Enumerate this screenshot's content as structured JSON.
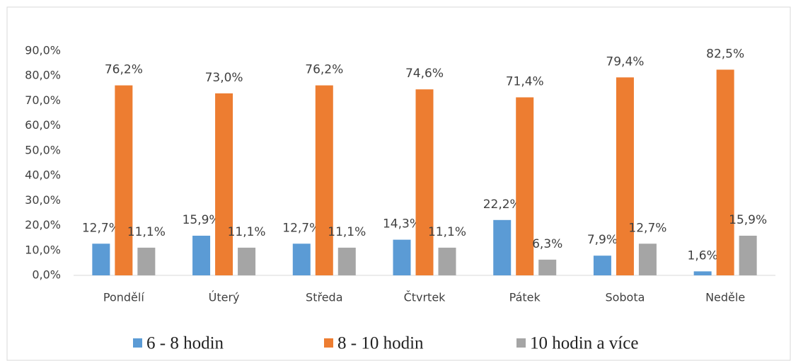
{
  "chart_data": {
    "type": "bar",
    "categories": [
      "Pondělí",
      "Úterý",
      "Středa",
      "Čtvrtek",
      "Pátek",
      "Sobota",
      "Neděle"
    ],
    "series": [
      {
        "name": "6 - 8 hodin",
        "color": "#5b9bd5",
        "values": [
          12.7,
          15.9,
          12.7,
          14.3,
          22.2,
          7.9,
          1.6
        ],
        "value_labels": [
          "12,7%",
          "15,9%",
          "12,7%",
          "14,3%",
          "22,2%",
          "7,9%",
          "1,6%"
        ]
      },
      {
        "name": "8 - 10 hodin",
        "color": "#ed7d31",
        "values": [
          76.2,
          73.0,
          76.2,
          74.6,
          71.4,
          79.4,
          82.5
        ],
        "value_labels": [
          "76,2%",
          "73,0%",
          "76,2%",
          "74,6%",
          "71,4%",
          "79,4%",
          "82,5%"
        ]
      },
      {
        "name": "10 hodin a více",
        "color": "#a5a5a5",
        "values": [
          11.1,
          11.1,
          11.1,
          11.1,
          6.3,
          12.7,
          15.9
        ],
        "value_labels": [
          "11,1%",
          "11,1%",
          "11,1%",
          "11,1%",
          "6,3%",
          "12,7%",
          "15,9%"
        ]
      }
    ],
    "ylim": [
      0,
      90
    ],
    "yticks": [
      {
        "value": 0,
        "label": "0,0%"
      },
      {
        "value": 10,
        "label": "10,0%"
      },
      {
        "value": 20,
        "label": "20,0%"
      },
      {
        "value": 30,
        "label": "30,0%"
      },
      {
        "value": 40,
        "label": "40,0%"
      },
      {
        "value": 50,
        "label": "50,0%"
      },
      {
        "value": 60,
        "label": "60,0%"
      },
      {
        "value": 70,
        "label": "70,0%"
      },
      {
        "value": 80,
        "label": "80,0%"
      },
      {
        "value": 90,
        "label": "90,0%"
      }
    ],
    "grid": false,
    "legend": "bottom"
  }
}
